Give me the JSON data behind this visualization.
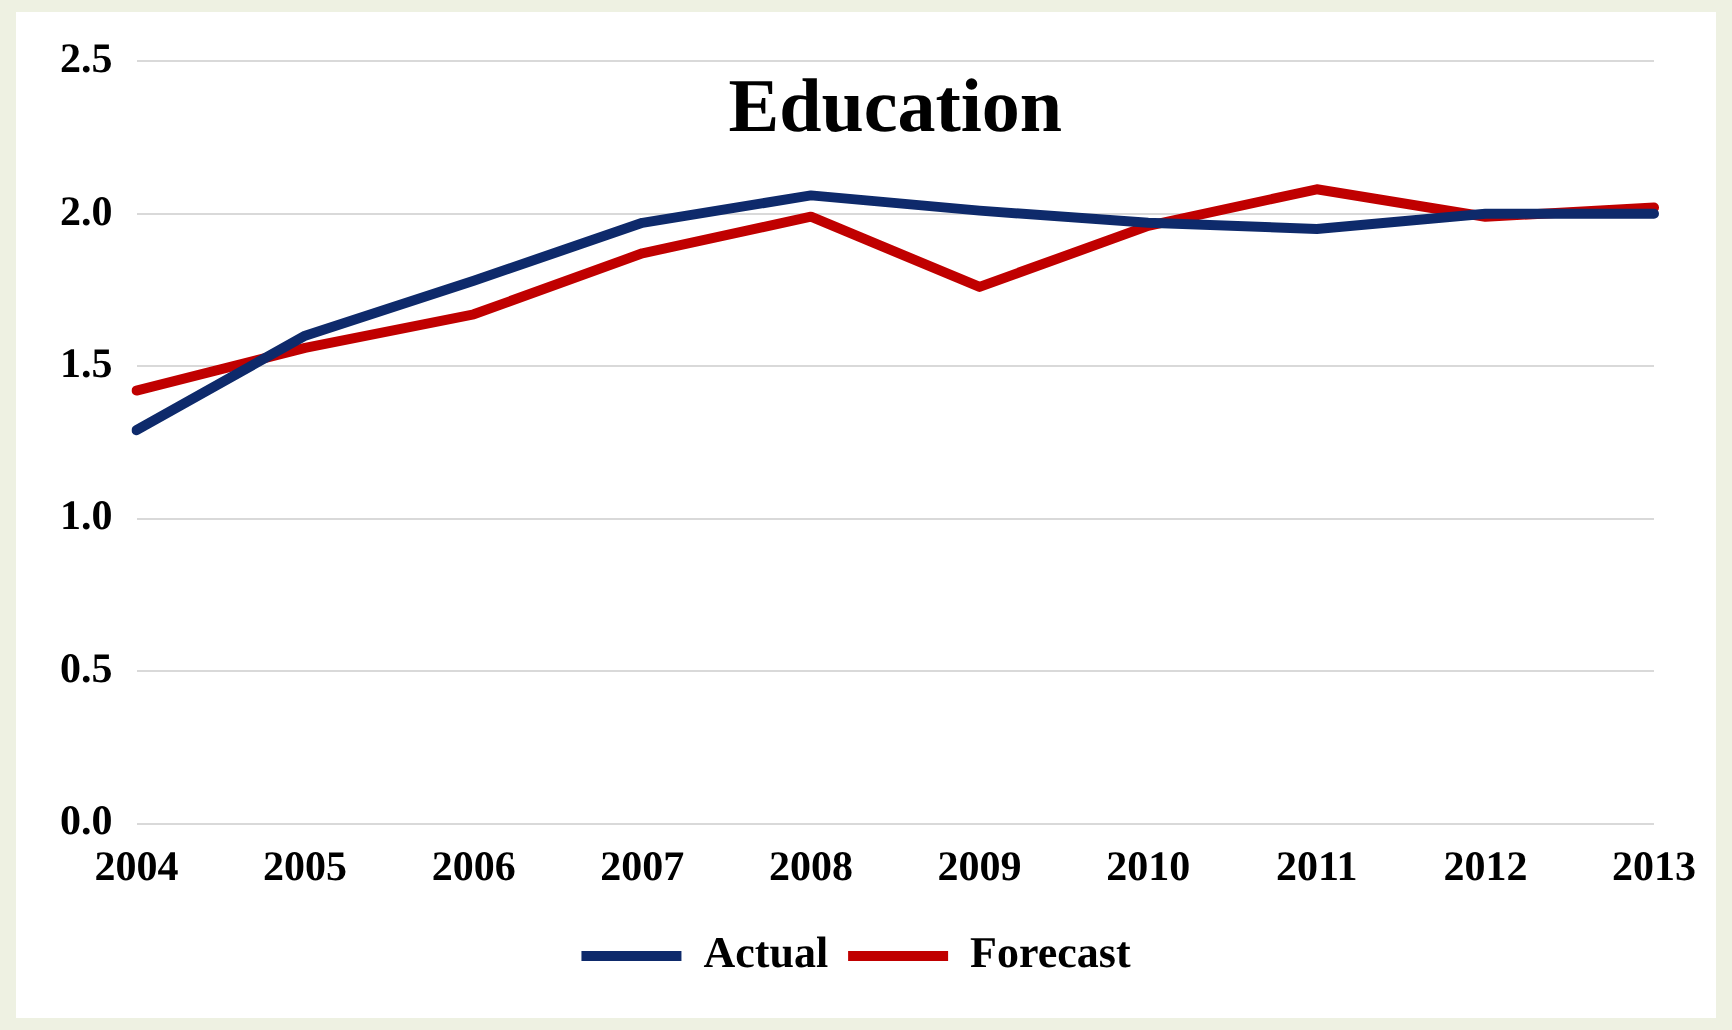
{
  "chart_data": {
    "type": "line",
    "title": "Education",
    "categories": [
      "2004",
      "2005",
      "2006",
      "2007",
      "2008",
      "2009",
      "2010",
      "2011",
      "2012",
      "2013"
    ],
    "series": [
      {
        "name": "Actual",
        "color": "#0e2a6b",
        "values": [
          1.29,
          1.6,
          1.78,
          1.97,
          2.06,
          2.01,
          1.97,
          1.95,
          2.0,
          2.0
        ]
      },
      {
        "name": "Forecast",
        "color": "#c00000",
        "values": [
          1.42,
          1.56,
          1.67,
          1.87,
          1.99,
          1.76,
          1.96,
          2.08,
          1.99,
          2.02
        ]
      }
    ],
    "ylim": [
      0,
      2.5
    ],
    "yticks": [
      {
        "value": 0,
        "label": "0.0"
      },
      {
        "value": 0.5,
        "label": "0.5"
      },
      {
        "value": 1,
        "label": "1.0"
      },
      {
        "value": 1.5,
        "label": "1.5"
      },
      {
        "value": 2,
        "label": "2.0"
      },
      {
        "value": 2.5,
        "label": "2.5"
      }
    ],
    "grid": "y",
    "legend": "bottom",
    "marker": "none",
    "line_style": "solid"
  }
}
